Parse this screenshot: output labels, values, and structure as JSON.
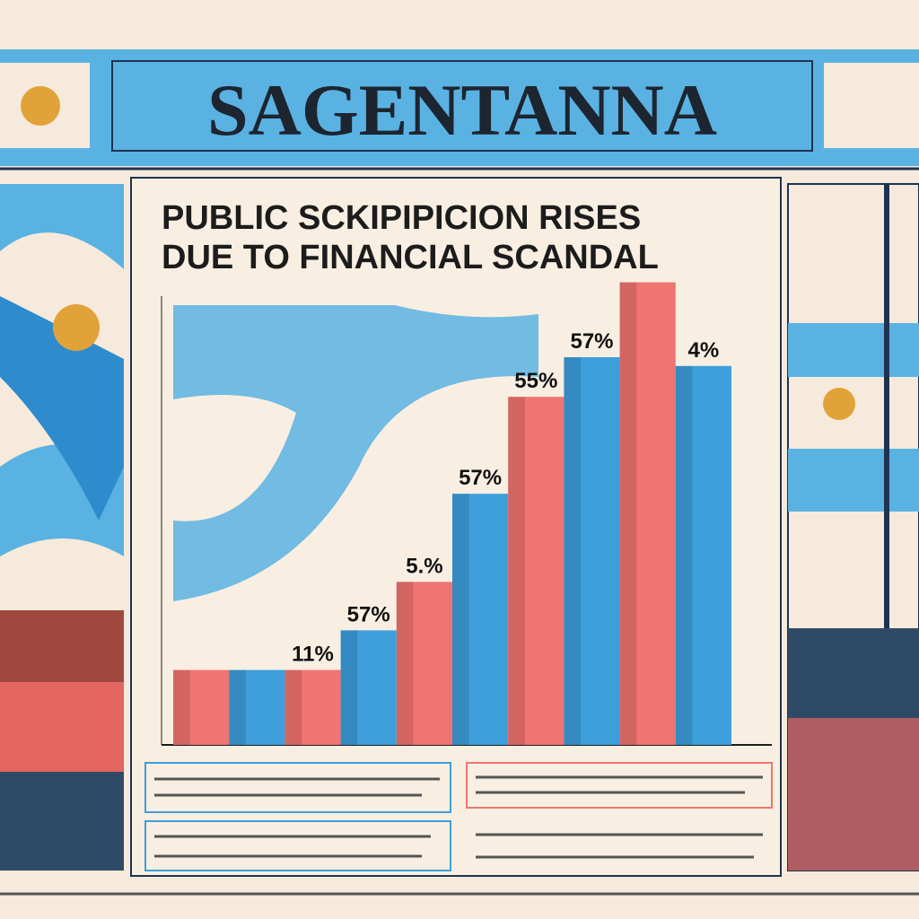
{
  "masthead": "SAGENTANNA",
  "chart_data": {
    "type": "bar",
    "title": "PUBLIC SCKIPIPICION RISES DUE TO FINANCIAL SCANDAL",
    "categories": [
      null,
      null,
      null,
      null,
      null,
      null,
      null,
      null,
      null,
      null
    ],
    "values": [
      17,
      17,
      17,
      26,
      37,
      57,
      79,
      88,
      105,
      86
    ],
    "colors": [
      "#f07470",
      "#3d9fdc",
      "#f07470",
      "#3d9fdc",
      "#f07470",
      "#3d9fdc",
      "#f07470",
      "#3d9fdc",
      "#f07470",
      "#3d9fdc"
    ],
    "annotations": [
      "11%",
      "57%",
      "5.%",
      "57%",
      "55%",
      "57%",
      "4%"
    ],
    "ylim": [
      0,
      110
    ]
  }
}
